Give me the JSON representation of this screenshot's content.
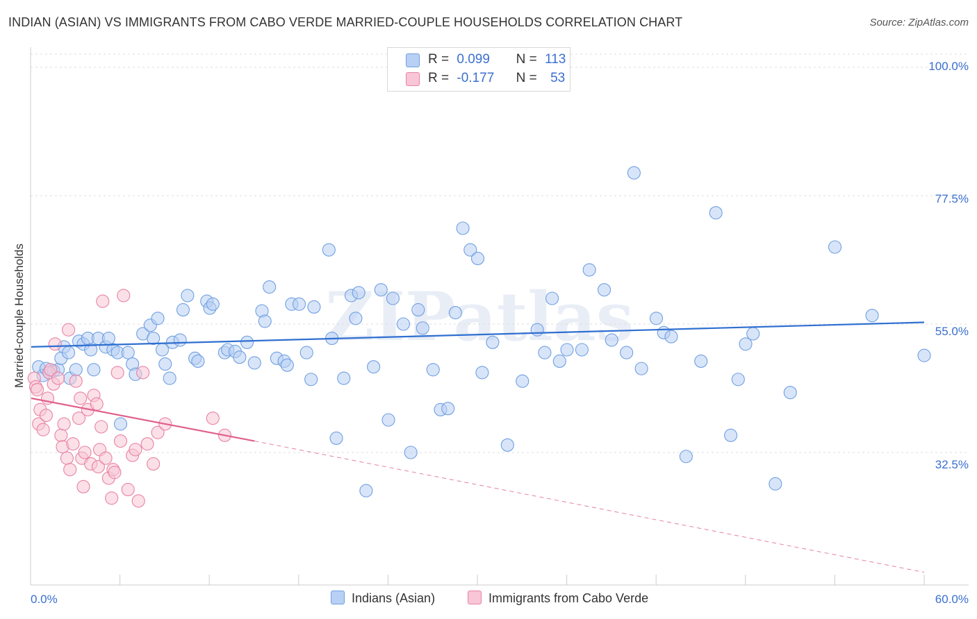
{
  "title": "INDIAN (ASIAN) VS IMMIGRANTS FROM CABO VERDE MARRIED-COUPLE HOUSEHOLDS CORRELATION CHART",
  "source": "Source: ZipAtlas.com",
  "watermark": "ZIPatlas",
  "legend": {
    "rows": [
      {
        "r_label": "R =",
        "r_value": "0.099",
        "n_label": "N =",
        "n_value": "113",
        "color": "#a8c4f0"
      },
      {
        "r_label": "R =",
        "r_value": "-0.177",
        "n_label": "N =",
        "n_value": "53",
        "color": "#f5b8cb"
      }
    ]
  },
  "chart_data": {
    "type": "scatter",
    "title": "INDIAN (ASIAN) VS IMMIGRANTS FROM CABO VERDE MARRIED-COUPLE HOUSEHOLDS CORRELATION CHART",
    "xlabel": "",
    "ylabel": "Married-couple Households",
    "xlim": [
      0,
      60
    ],
    "ylim": [
      10,
      102
    ],
    "x_tick_labels": [
      "0.0%",
      "60.0%"
    ],
    "y_tick_labels": [
      "100.0%",
      "77.5%",
      "55.0%",
      "32.5%"
    ],
    "y_ticks": [
      100,
      77.5,
      55,
      32.5
    ],
    "grid": true,
    "series": [
      {
        "name": "Indians (Asian)",
        "color": "#6f9fe0",
        "fill": "#b8d0f4",
        "trend": {
          "x": [
            0,
            60
          ],
          "y": [
            51.0,
            55.3
          ]
        },
        "points": [
          [
            0.5,
            47.5
          ],
          [
            0.8,
            46
          ],
          [
            1.0,
            47.2
          ],
          [
            1.2,
            46.5
          ],
          [
            1.5,
            46.8
          ],
          [
            1.8,
            47
          ],
          [
            2.0,
            49
          ],
          [
            2.2,
            51
          ],
          [
            2.5,
            50
          ],
          [
            2.6,
            45.5
          ],
          [
            3.0,
            47
          ],
          [
            3.2,
            52
          ],
          [
            3.5,
            51.5
          ],
          [
            3.8,
            52.5
          ],
          [
            4.0,
            50.5
          ],
          [
            4.2,
            47
          ],
          [
            4.5,
            52.5
          ],
          [
            5.0,
            51
          ],
          [
            5.2,
            52.5
          ],
          [
            5.5,
            50.5
          ],
          [
            5.8,
            50
          ],
          [
            6.0,
            37.5
          ],
          [
            6.5,
            50
          ],
          [
            6.8,
            48
          ],
          [
            7.0,
            46.2
          ],
          [
            7.5,
            53.3
          ],
          [
            8.0,
            54.8
          ],
          [
            8.2,
            52.5
          ],
          [
            8.5,
            56
          ],
          [
            8.8,
            50.5
          ],
          [
            9.0,
            48
          ],
          [
            9.3,
            45.5
          ],
          [
            9.5,
            51.8
          ],
          [
            10.0,
            52.2
          ],
          [
            10.2,
            57.5
          ],
          [
            10.5,
            60
          ],
          [
            11.0,
            49
          ],
          [
            11.2,
            48.5
          ],
          [
            11.8,
            59
          ],
          [
            12.0,
            57.8
          ],
          [
            12.2,
            58.5
          ],
          [
            13.0,
            50
          ],
          [
            13.2,
            50.5
          ],
          [
            13.7,
            50.2
          ],
          [
            14.0,
            49.2
          ],
          [
            14.5,
            51.8
          ],
          [
            15.0,
            48.2
          ],
          [
            15.5,
            57.3
          ],
          [
            15.7,
            55.5
          ],
          [
            16.0,
            61.5
          ],
          [
            16.5,
            49
          ],
          [
            17.0,
            48.5
          ],
          [
            17.2,
            47.8
          ],
          [
            17.5,
            58.5
          ],
          [
            18.0,
            58.5
          ],
          [
            18.5,
            50
          ],
          [
            18.8,
            45.3
          ],
          [
            19.0,
            58
          ],
          [
            20.0,
            68
          ],
          [
            20.2,
            52.5
          ],
          [
            20.5,
            35
          ],
          [
            21.0,
            45.5
          ],
          [
            21.5,
            60
          ],
          [
            21.8,
            56
          ],
          [
            22.0,
            60.5
          ],
          [
            22.5,
            25.8
          ],
          [
            23.0,
            47.5
          ],
          [
            23.5,
            61
          ],
          [
            24.0,
            38.2
          ],
          [
            24.3,
            59.5
          ],
          [
            25.0,
            55
          ],
          [
            25.5,
            32.5
          ],
          [
            26.0,
            57.5
          ],
          [
            26.3,
            54.3
          ],
          [
            27.0,
            47
          ],
          [
            27.5,
            40
          ],
          [
            28.0,
            40.2
          ],
          [
            28.5,
            57
          ],
          [
            29.0,
            71.8
          ],
          [
            29.5,
            68
          ],
          [
            30.0,
            66.5
          ],
          [
            30.3,
            46.5
          ],
          [
            31.0,
            51.8
          ],
          [
            32.0,
            33.8
          ],
          [
            33.0,
            45
          ],
          [
            34.0,
            54
          ],
          [
            34.5,
            50
          ],
          [
            35.0,
            59.5
          ],
          [
            35.5,
            48.5
          ],
          [
            36.0,
            50.5
          ],
          [
            37.0,
            50.5
          ],
          [
            37.5,
            64.5
          ],
          [
            38.5,
            61
          ],
          [
            39.0,
            52.2
          ],
          [
            40.0,
            50
          ],
          [
            40.5,
            81.5
          ],
          [
            41.0,
            47.2
          ],
          [
            42.0,
            56
          ],
          [
            42.5,
            53.5
          ],
          [
            43.0,
            52.8
          ],
          [
            44.0,
            31.8
          ],
          [
            45.0,
            48.5
          ],
          [
            46.0,
            74.5
          ],
          [
            47.0,
            35.5
          ],
          [
            47.5,
            45.3
          ],
          [
            48.0,
            51.5
          ],
          [
            48.5,
            53.3
          ],
          [
            50.0,
            27
          ],
          [
            51.0,
            43
          ],
          [
            54.0,
            68.5
          ],
          [
            56.5,
            56.5
          ],
          [
            60.0,
            49.5
          ]
        ]
      },
      {
        "name": "Immigrants from Cabo Verde",
        "color": "#e882a4",
        "fill": "#f8c6d6",
        "trend": {
          "x": [
            0,
            15
          ],
          "y": [
            42.0,
            34.5
          ]
        },
        "trend_extended": {
          "x": [
            15,
            60
          ],
          "y": [
            34.5,
            11.5
          ]
        },
        "points": [
          [
            0.2,
            45.5
          ],
          [
            0.3,
            44
          ],
          [
            0.4,
            43.5
          ],
          [
            0.5,
            37.5
          ],
          [
            0.6,
            40
          ],
          [
            0.8,
            36.5
          ],
          [
            1.0,
            39
          ],
          [
            1.1,
            42
          ],
          [
            1.2,
            46.5
          ],
          [
            1.3,
            47
          ],
          [
            1.5,
            44.5
          ],
          [
            1.6,
            51.5
          ],
          [
            1.8,
            45.5
          ],
          [
            2.0,
            35.5
          ],
          [
            2.1,
            33.5
          ],
          [
            2.2,
            37.5
          ],
          [
            2.4,
            31.5
          ],
          [
            2.5,
            54
          ],
          [
            2.6,
            29.5
          ],
          [
            2.8,
            34
          ],
          [
            3.0,
            45
          ],
          [
            3.2,
            38.5
          ],
          [
            3.3,
            42
          ],
          [
            3.4,
            31.5
          ],
          [
            3.5,
            26.5
          ],
          [
            3.6,
            32.5
          ],
          [
            3.8,
            40
          ],
          [
            4.0,
            30.5
          ],
          [
            4.2,
            42.5
          ],
          [
            4.4,
            41
          ],
          [
            4.5,
            30
          ],
          [
            4.6,
            33
          ],
          [
            4.7,
            37
          ],
          [
            4.8,
            59
          ],
          [
            5.0,
            31.5
          ],
          [
            5.2,
            28
          ],
          [
            5.4,
            24.5
          ],
          [
            5.5,
            29.5
          ],
          [
            5.6,
            29
          ],
          [
            5.8,
            46.5
          ],
          [
            6.0,
            34.5
          ],
          [
            6.2,
            60
          ],
          [
            6.5,
            26
          ],
          [
            6.8,
            32
          ],
          [
            7.0,
            33
          ],
          [
            7.2,
            24
          ],
          [
            7.5,
            46.5
          ],
          [
            7.8,
            34
          ],
          [
            8.2,
            30.5
          ],
          [
            8.5,
            36
          ],
          [
            9.0,
            37.5
          ],
          [
            12.2,
            38.5
          ],
          [
            13.0,
            35.5
          ]
        ]
      }
    ]
  },
  "bottom_legend": [
    {
      "label": "Indians (Asian)",
      "color": "#a8c4f0"
    },
    {
      "label": "Immigrants from Cabo Verde",
      "color": "#f5b8cb"
    }
  ]
}
